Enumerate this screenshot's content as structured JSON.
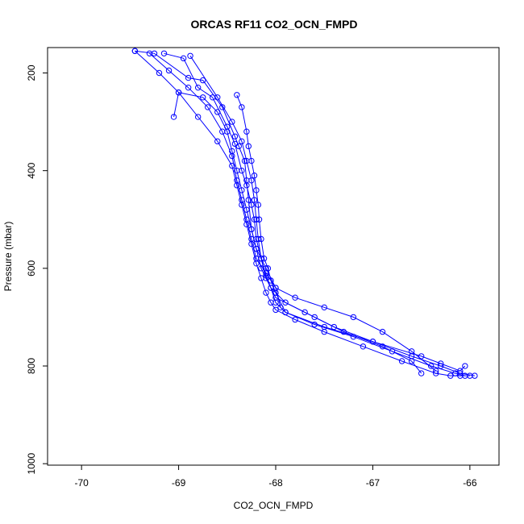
{
  "chart_data": {
    "type": "line",
    "title": "ORCAS RF11 CO2_OCN_FMPD",
    "xlabel": "CO2_OCN_FMPD",
    "ylabel": "Pressure (mbar)",
    "xlim": [
      -70.35,
      -65.7
    ],
    "ylim": [
      1003,
      148
    ],
    "y_reversed": true,
    "x_ticks": [
      -70,
      -69,
      -68,
      -67,
      -66
    ],
    "x_tick_labels": [
      "-70",
      "-69",
      "-68",
      "-67",
      "-66"
    ],
    "y_ticks": [
      200,
      400,
      600,
      800,
      1000
    ],
    "y_tick_labels": [
      "200",
      "400",
      "600",
      "800",
      "1000"
    ],
    "marker": "open-circle",
    "color": "#0000ff",
    "grid": false,
    "series": [
      {
        "x": [
          -69.45,
          -69.2,
          -69.0,
          -68.8,
          -68.6,
          -68.45,
          -68.4,
          -68.35,
          -68.3,
          -68.25,
          -68.2,
          -68.15,
          -68.1,
          -68.05,
          -68.0,
          -67.8,
          -67.5,
          -67.1,
          -66.7,
          -66.35,
          -66.2,
          -66.1,
          -66.0
        ],
        "y": [
          155,
          200,
          240,
          290,
          340,
          390,
          430,
          470,
          510,
          550,
          590,
          620,
          650,
          670,
          685,
          705,
          730,
          760,
          790,
          815,
          820,
          820,
          820
        ]
      },
      {
        "x": [
          -69.3,
          -69.1,
          -68.9,
          -68.7,
          -68.55,
          -68.45,
          -68.4,
          -68.35,
          -68.3,
          -68.25,
          -68.2,
          -68.1,
          -68.0,
          -67.8,
          -67.5,
          -67.2,
          -66.9,
          -66.6,
          -66.35
        ],
        "y": [
          160,
          195,
          230,
          270,
          320,
          370,
          420,
          460,
          500,
          540,
          580,
          610,
          640,
          660,
          680,
          700,
          730,
          770,
          810
        ]
      },
      {
        "x": [
          -69.05,
          -69.0,
          -68.75,
          -68.6,
          -68.5,
          -68.45,
          -68.4,
          -68.35,
          -68.3,
          -68.25,
          -68.2,
          -68.15,
          -68.05,
          -67.9,
          -67.6,
          -67.3,
          -66.9,
          -66.6,
          -66.5
        ],
        "y": [
          290,
          240,
          250,
          280,
          320,
          360,
          400,
          440,
          480,
          520,
          560,
          600,
          640,
          670,
          700,
          730,
          760,
          790,
          815
        ]
      },
      {
        "x": [
          -69.15,
          -68.95,
          -68.8,
          -68.65,
          -68.5,
          -68.42,
          -68.35,
          -68.3,
          -68.25,
          -68.22,
          -68.2,
          -68.15,
          -68.1,
          -68.0,
          -67.7,
          -67.4,
          -67.0,
          -66.6,
          -66.3,
          -66.1,
          -65.95
        ],
        "y": [
          160,
          170,
          230,
          250,
          310,
          345,
          400,
          430,
          470,
          500,
          540,
          580,
          620,
          660,
          690,
          720,
          750,
          780,
          800,
          815,
          820
        ]
      },
      {
        "x": [
          -68.88,
          -68.6,
          -68.45,
          -68.35,
          -68.3,
          -68.25,
          -68.22,
          -68.2,
          -68.18,
          -68.15,
          -68.1,
          -68.05,
          -68.0,
          -67.9,
          -67.6,
          -67.2,
          -66.8,
          -66.4,
          -66.15,
          -66.05
        ],
        "y": [
          165,
          250,
          300,
          340,
          380,
          420,
          460,
          500,
          540,
          580,
          615,
          640,
          670,
          690,
          715,
          740,
          770,
          800,
          815,
          820
        ]
      },
      {
        "x": [
          -68.4,
          -68.35,
          -68.3,
          -68.28,
          -68.25,
          -68.22,
          -68.2,
          -68.18,
          -68.17,
          -68.15,
          -68.12,
          -68.08,
          -68.05,
          -68.0,
          -67.9,
          -67.5,
          -67.0,
          -66.5,
          -66.3,
          -66.1,
          -66.05
        ],
        "y": [
          245,
          270,
          320,
          350,
          380,
          410,
          440,
          470,
          500,
          540,
          580,
          600,
          625,
          650,
          690,
          720,
          750,
          780,
          795,
          810,
          800
        ]
      },
      {
        "x": [
          -69.45,
          -69.25,
          -68.9,
          -68.75,
          -68.55,
          -68.42,
          -68.38,
          -68.32,
          -68.3,
          -68.28,
          -68.25,
          -68.2,
          -68.1,
          -68.0,
          -67.95
        ],
        "y": [
          155,
          160,
          210,
          215,
          270,
          330,
          350,
          380,
          420,
          460,
          520,
          560,
          600,
          640,
          680
        ]
      }
    ]
  }
}
